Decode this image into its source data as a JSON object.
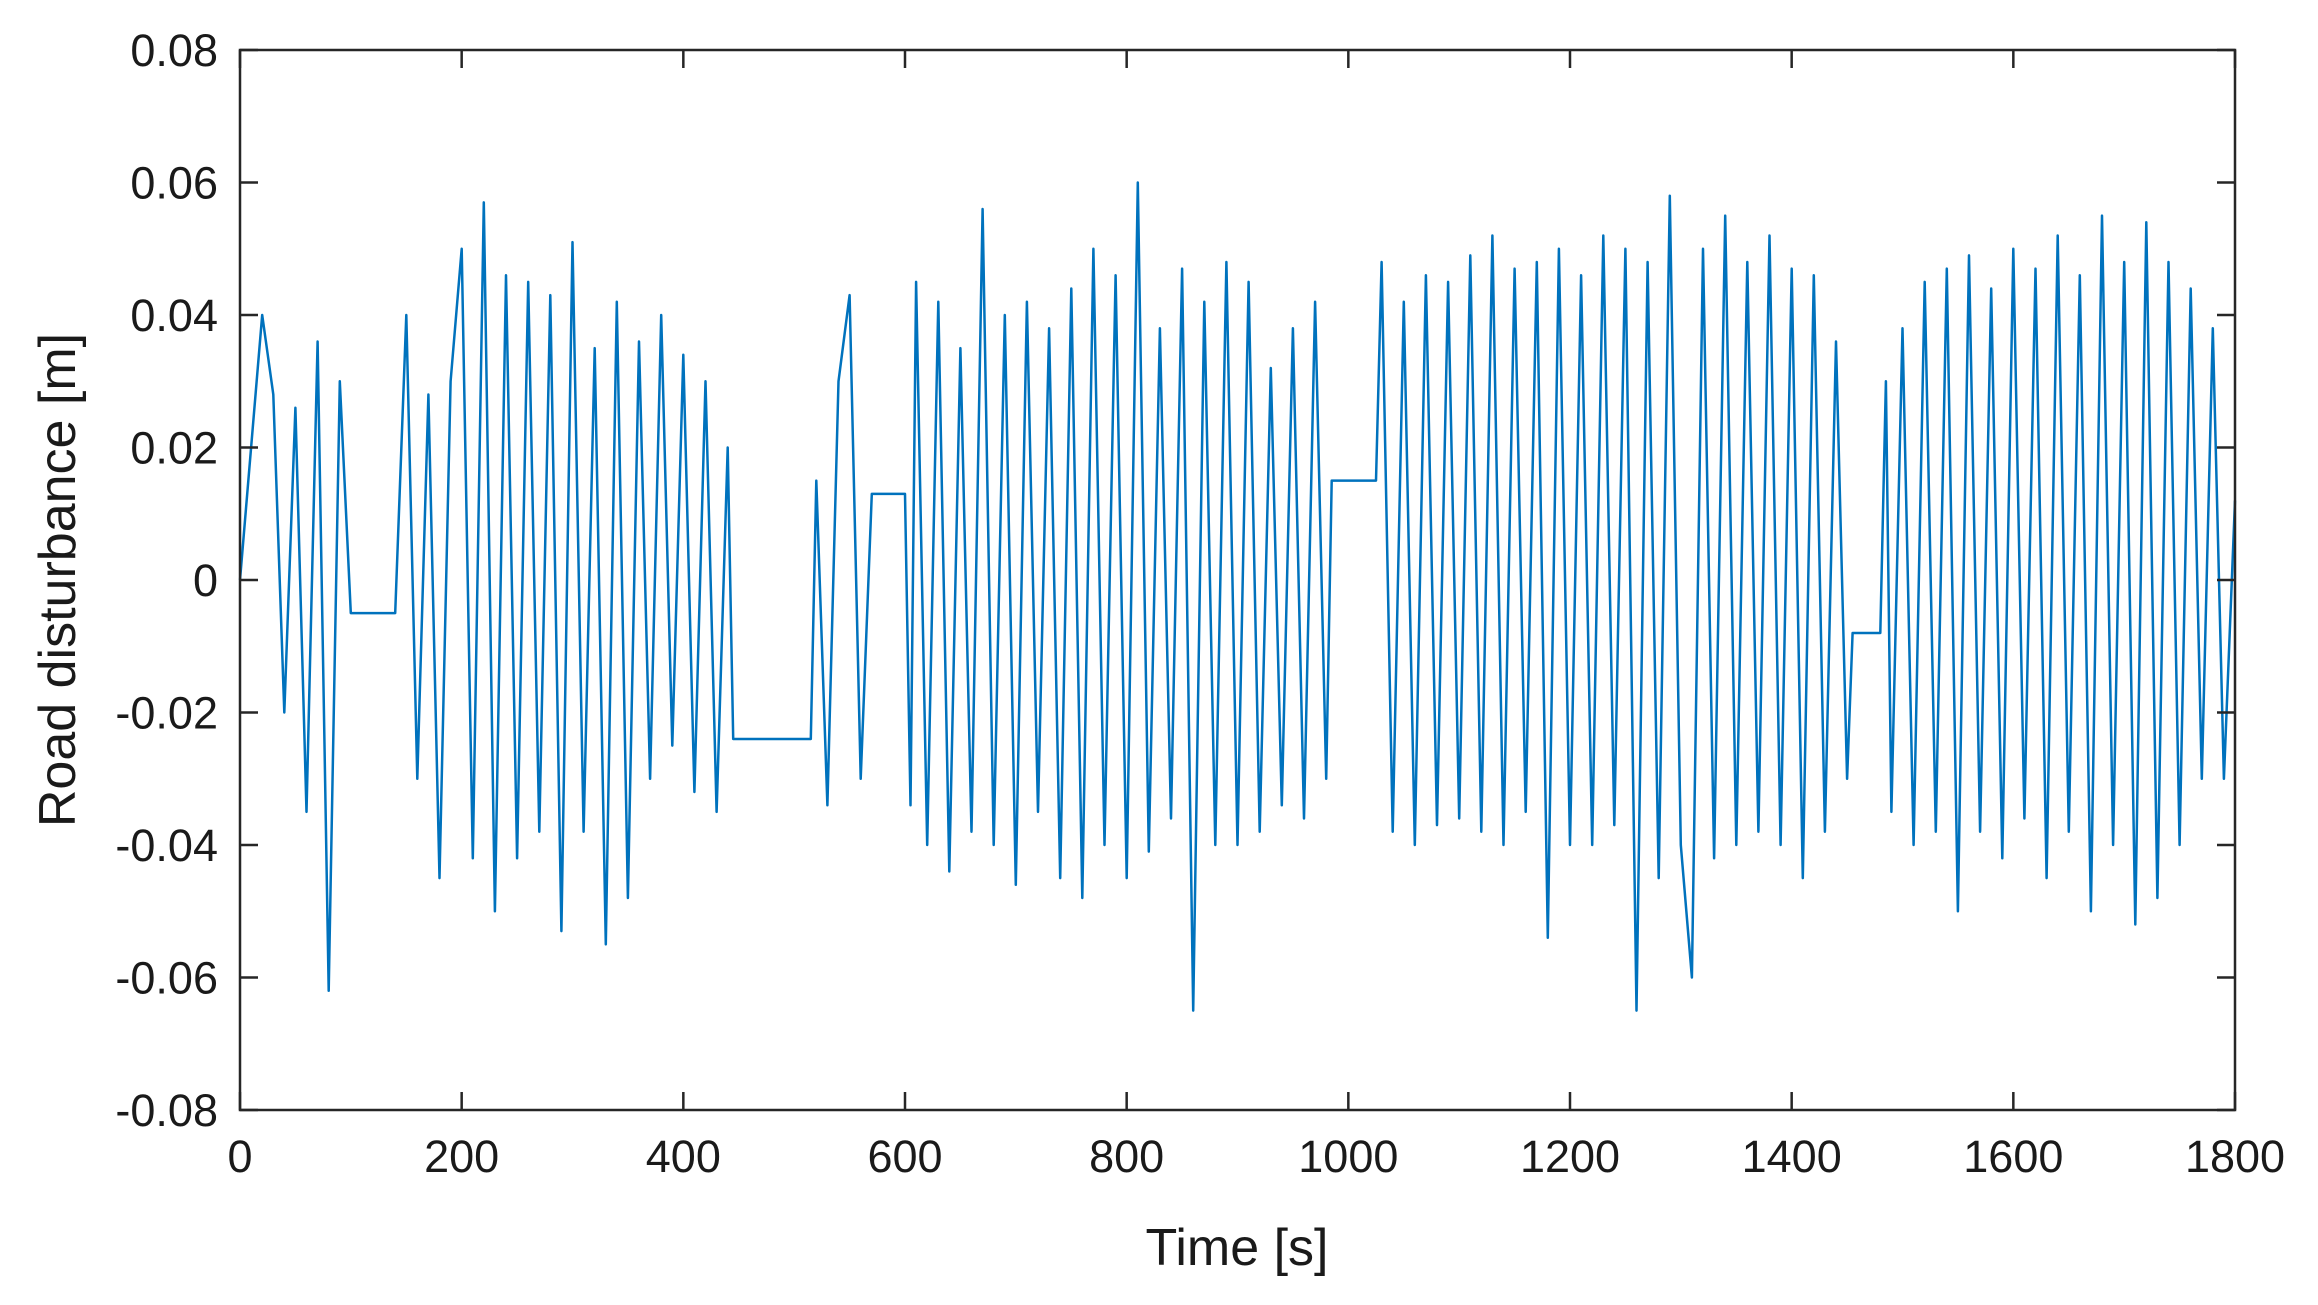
{
  "chart_data": {
    "type": "line",
    "title": "",
    "xlabel": "Time [s]",
    "ylabel": "Road disturbance [m]",
    "xlim": [
      0,
      1800
    ],
    "ylim": [
      -0.08,
      0.08
    ],
    "x_ticks": [
      0,
      200,
      400,
      600,
      800,
      1000,
      1200,
      1400,
      1600,
      1800
    ],
    "y_ticks": [
      -0.08,
      -0.06,
      -0.04,
      -0.02,
      0,
      0.02,
      0.04,
      0.06,
      0.08
    ],
    "x_tick_labels": [
      "0",
      "200",
      "400",
      "600",
      "800",
      "1000",
      "1200",
      "1400",
      "1600",
      "1800"
    ],
    "y_tick_labels": [
      "-0.08",
      "-0.06",
      "-0.04",
      "-0.02",
      "0",
      "0.02",
      "0.04",
      "0.06",
      "0.08"
    ],
    "grid": false,
    "line_color": "#0072BD",
    "series": [
      {
        "x": [
          0,
          10,
          20,
          30,
          40,
          50,
          60,
          70,
          80,
          90,
          100,
          140,
          150,
          160,
          170,
          180,
          190,
          200,
          210,
          220,
          230,
          240,
          250,
          260,
          270,
          280,
          290,
          300,
          310,
          320,
          330,
          340,
          350,
          360,
          370,
          380,
          390,
          400,
          410,
          420,
          430,
          440,
          445,
          515,
          520,
          530,
          540,
          550,
          560,
          570,
          600,
          605,
          610,
          620,
          630,
          640,
          650,
          660,
          670,
          680,
          690,
          700,
          710,
          720,
          730,
          740,
          750,
          760,
          770,
          780,
          790,
          800,
          810,
          820,
          830,
          840,
          850,
          860,
          870,
          880,
          890,
          900,
          910,
          920,
          930,
          940,
          950,
          960,
          970,
          980,
          985,
          1025,
          1030,
          1040,
          1050,
          1060,
          1070,
          1080,
          1090,
          1100,
          1110,
          1120,
          1130,
          1140,
          1150,
          1160,
          1170,
          1180,
          1190,
          1200,
          1210,
          1220,
          1230,
          1240,
          1250,
          1260,
          1270,
          1280,
          1290,
          1300,
          1310,
          1320,
          1330,
          1340,
          1350,
          1360,
          1370,
          1380,
          1390,
          1400,
          1410,
          1420,
          1430,
          1440,
          1450,
          1455,
          1480,
          1485,
          1490,
          1500,
          1510,
          1520,
          1530,
          1540,
          1550,
          1560,
          1570,
          1580,
          1590,
          1600,
          1610,
          1620,
          1630,
          1640,
          1650,
          1660,
          1670,
          1680,
          1690,
          1700,
          1710,
          1720,
          1730,
          1740,
          1750,
          1760,
          1770,
          1780,
          1790,
          1800
        ],
        "y": [
          0,
          0.02,
          0.04,
          0.028,
          -0.02,
          0.026,
          -0.035,
          0.036,
          -0.062,
          0.03,
          -0.005,
          -0.005,
          0.04,
          -0.03,
          0.028,
          -0.045,
          0.03,
          0.05,
          -0.042,
          0.057,
          -0.05,
          0.046,
          -0.042,
          0.045,
          -0.038,
          0.043,
          -0.053,
          0.051,
          -0.038,
          0.035,
          -0.055,
          0.042,
          -0.048,
          0.036,
          -0.03,
          0.04,
          -0.025,
          0.034,
          -0.032,
          0.03,
          -0.035,
          0.02,
          -0.024,
          -0.024,
          0.015,
          -0.034,
          0.03,
          0.043,
          -0.03,
          0.013,
          0.013,
          -0.034,
          0.045,
          -0.04,
          0.042,
          -0.044,
          0.035,
          -0.038,
          0.056,
          -0.04,
          0.04,
          -0.046,
          0.042,
          -0.035,
          0.038,
          -0.045,
          0.044,
          -0.048,
          0.05,
          -0.04,
          0.046,
          -0.045,
          0.06,
          -0.041,
          0.038,
          -0.036,
          0.047,
          -0.065,
          0.042,
          -0.04,
          0.048,
          -0.04,
          0.045,
          -0.038,
          0.032,
          -0.034,
          0.038,
          -0.036,
          0.042,
          -0.03,
          0.015,
          0.015,
          0.048,
          -0.038,
          0.042,
          -0.04,
          0.046,
          -0.037,
          0.045,
          -0.036,
          0.049,
          -0.038,
          0.052,
          -0.04,
          0.047,
          -0.035,
          0.048,
          -0.054,
          0.05,
          -0.04,
          0.046,
          -0.04,
          0.052,
          -0.037,
          0.05,
          -0.065,
          0.048,
          -0.045,
          0.058,
          -0.04,
          -0.06,
          0.05,
          -0.042,
          0.055,
          -0.04,
          0.048,
          -0.038,
          0.052,
          -0.04,
          0.047,
          -0.045,
          0.046,
          -0.038,
          0.036,
          -0.03,
          -0.008,
          -0.008,
          0.03,
          -0.035,
          0.038,
          -0.04,
          0.045,
          -0.038,
          0.047,
          -0.05,
          0.049,
          -0.038,
          0.044,
          -0.042,
          0.05,
          -0.036,
          0.047,
          -0.045,
          0.052,
          -0.038,
          0.046,
          -0.05,
          0.055,
          -0.04,
          0.048,
          -0.052,
          0.054,
          -0.048,
          0.048,
          -0.04,
          0.044,
          -0.03,
          0.038,
          -0.03,
          0.012
        ]
      }
    ]
  }
}
